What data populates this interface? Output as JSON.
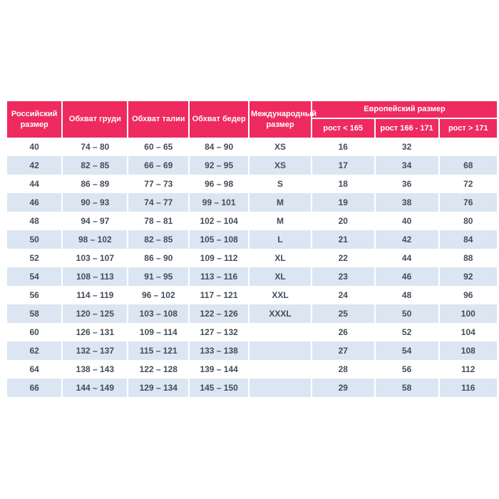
{
  "page": {
    "background_color": "#ffffff",
    "accent_color": "#ee2a5e",
    "stripe_color": "#dce6f2",
    "body_text_color": "#424d59",
    "header_text_color": "#ffffff"
  },
  "table": {
    "header": {
      "russian_size": "Российский размер",
      "chest": "Обхват груди",
      "waist": "Обхват талии",
      "hips": "Обхват бедер",
      "international_size": "Международный размер",
      "european_size": "Европейский размер",
      "height_lt_165": "рост < 165",
      "height_166_171": "рост 166 - 171",
      "height_gt_171": "рост > 171"
    },
    "rows": [
      [
        "40",
        "74 – 80",
        "60 – 65",
        "84 – 90",
        "XS",
        "16",
        "32",
        ""
      ],
      [
        "42",
        "82 – 85",
        "66 – 69",
        "92 – 95",
        "XS",
        "17",
        "34",
        "68"
      ],
      [
        "44",
        "86 – 89",
        "77 – 73",
        "96 – 98",
        "S",
        "18",
        "36",
        "72"
      ],
      [
        "46",
        "90 – 93",
        "74 – 77",
        "99 – 101",
        "M",
        "19",
        "38",
        "76"
      ],
      [
        "48",
        "94 – 97",
        "78 – 81",
        "102 – 104",
        "M",
        "20",
        "40",
        "80"
      ],
      [
        "50",
        "98 – 102",
        "82 – 85",
        "105 – 108",
        "L",
        "21",
        "42",
        "84"
      ],
      [
        "52",
        "103 – 107",
        "86 – 90",
        "109 – 112",
        "XL",
        "22",
        "44",
        "88"
      ],
      [
        "54",
        "108 – 113",
        "91 – 95",
        "113 – 116",
        "XL",
        "23",
        "46",
        "92"
      ],
      [
        "56",
        "114 – 119",
        "96 – 102",
        "117 – 121",
        "XXL",
        "24",
        "48",
        "96"
      ],
      [
        "58",
        "120 – 125",
        "103 – 108",
        "122 – 126",
        "XXXL",
        "25",
        "50",
        "100"
      ],
      [
        "60",
        "126 – 131",
        "109 – 114",
        "127 – 132",
        "",
        "26",
        "52",
        "104"
      ],
      [
        "62",
        "132 – 137",
        "115 – 121",
        "133 – 138",
        "",
        "27",
        "54",
        "108"
      ],
      [
        "64",
        "138 – 143",
        "122 – 128",
        "139 – 144",
        "",
        "28",
        "56",
        "112"
      ],
      [
        "66",
        "144 – 149",
        "129 – 134",
        "145 – 150",
        "",
        "29",
        "58",
        "116"
      ]
    ]
  },
  "chart_data": {
    "type": "table",
    "title": "Европейский размер / таблица размеров",
    "columns": [
      "Российский размер",
      "Обхват груди",
      "Обхват талии",
      "Обхват бедер",
      "Международный размер",
      "Европейский размер: рост < 165",
      "Европейский размер: рост 166 - 171",
      "Европейский размер: рост > 171"
    ],
    "rows": [
      [
        "40",
        "74 – 80",
        "60 – 65",
        "84 – 90",
        "XS",
        "16",
        "32",
        ""
      ],
      [
        "42",
        "82 – 85",
        "66 – 69",
        "92 – 95",
        "XS",
        "17",
        "34",
        "68"
      ],
      [
        "44",
        "86 – 89",
        "77 – 73",
        "96 – 98",
        "S",
        "18",
        "36",
        "72"
      ],
      [
        "46",
        "90 – 93",
        "74 – 77",
        "99 – 101",
        "M",
        "19",
        "38",
        "76"
      ],
      [
        "48",
        "94 – 97",
        "78 – 81",
        "102 – 104",
        "M",
        "20",
        "40",
        "80"
      ],
      [
        "50",
        "98 – 102",
        "82 – 85",
        "105 – 108",
        "L",
        "21",
        "42",
        "84"
      ],
      [
        "52",
        "103 – 107",
        "86 – 90",
        "109 – 112",
        "XL",
        "22",
        "44",
        "88"
      ],
      [
        "54",
        "108 – 113",
        "91 – 95",
        "113 – 116",
        "XL",
        "23",
        "46",
        "92"
      ],
      [
        "56",
        "114 – 119",
        "96 – 102",
        "117 – 121",
        "XXL",
        "24",
        "48",
        "96"
      ],
      [
        "58",
        "120 – 125",
        "103 – 108",
        "122 – 126",
        "XXXL",
        "25",
        "50",
        "100"
      ],
      [
        "60",
        "126 – 131",
        "109 – 114",
        "127 – 132",
        "",
        "26",
        "52",
        "104"
      ],
      [
        "62",
        "132 – 137",
        "115 – 121",
        "133 – 138",
        "",
        "27",
        "54",
        "108"
      ],
      [
        "64",
        "138 – 143",
        "122 – 128",
        "139 – 144",
        "",
        "28",
        "56",
        "112"
      ],
      [
        "66",
        "144 – 149",
        "129 – 134",
        "145 – 150",
        "",
        "29",
        "58",
        "116"
      ]
    ]
  }
}
